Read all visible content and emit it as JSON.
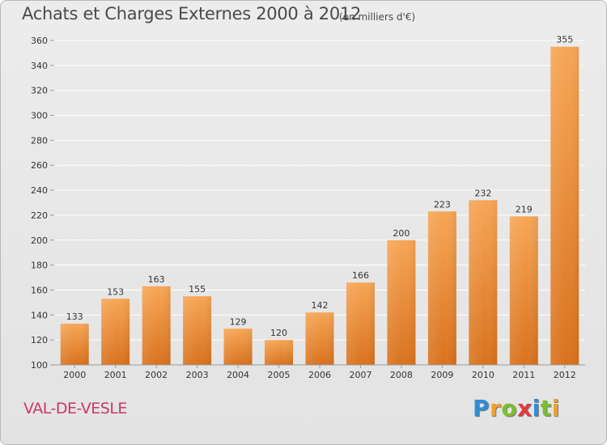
{
  "title": "Achats et Charges Externes 2000 à 2012",
  "subtitle": "(en milliers d'€)",
  "location": "VAL-DE-VESLE",
  "logo": {
    "letters": [
      "P",
      "r",
      "o",
      "x",
      "i",
      "t",
      "i"
    ],
    "colors": [
      "#2f8fd6",
      "#f0a030",
      "#7cbf2e",
      "#e23b3b",
      "#2f8fd6",
      "#7cbf2e",
      "#f0a030"
    ]
  },
  "colors": {
    "bar_light": "#f7a656",
    "bar_dark": "#d9721e",
    "grid": "#ffffff",
    "axis_text": "#333333"
  },
  "chart_data": {
    "type": "bar",
    "title": "Achats et Charges Externes 2000 à 2012",
    "subtitle": "(en milliers d'€)",
    "categories": [
      "2000",
      "2001",
      "2002",
      "2003",
      "2004",
      "2005",
      "2006",
      "2007",
      "2008",
      "2009",
      "2010",
      "2011",
      "2012"
    ],
    "values": [
      133,
      153,
      163,
      155,
      129,
      120,
      142,
      166,
      200,
      223,
      232,
      219,
      355
    ],
    "ylim": [
      100,
      360
    ],
    "yticks": [
      100,
      120,
      140,
      160,
      180,
      200,
      220,
      240,
      260,
      280,
      300,
      320,
      340,
      360
    ],
    "grid": true,
    "xlabel": "",
    "ylabel": ""
  }
}
